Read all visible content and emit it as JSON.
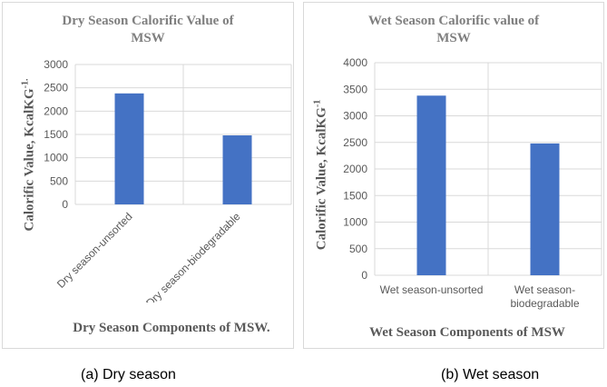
{
  "chart_data": [
    {
      "type": "bar",
      "title": "Dry Season Calorific Value of MSW",
      "title_lines": [
        "Dry Season Calorific Value of",
        "MSW"
      ],
      "xlabel": "Dry Season Components of MSW.",
      "ylabel": "Calorific Value, KcalKG",
      "ylabel_sup": "-1.",
      "categories": [
        "Dry season-unsorted",
        "Dry season-biodegradable"
      ],
      "values": [
        2380,
        1480
      ],
      "ylim": [
        0,
        3000
      ],
      "yticks": [
        0,
        500,
        1000,
        1500,
        2000,
        2500,
        3000
      ],
      "ytick_labels": [
        "0",
        "500",
        "1000",
        "1500",
        "2000",
        "2500",
        "3000"
      ],
      "bar_color": "#4472c4",
      "grid": true,
      "caption": "(a) Dry season"
    },
    {
      "type": "bar",
      "title": "Wet Season Calorific value of MSW",
      "title_lines": [
        "Wet Season Calorific value of",
        "MSW"
      ],
      "xlabel": "Wet Season Components of MSW",
      "ylabel": "Calorific Value, KcalKG",
      "ylabel_sup": "-1",
      "categories": [
        "Wet season-unsorted",
        "Wet season-biodegradable"
      ],
      "category_lines": [
        [
          "Wet season-unsorted"
        ],
        [
          "Wet season-",
          "biodegradable"
        ]
      ],
      "values": [
        3380,
        2480
      ],
      "ylim": [
        0,
        4000
      ],
      "yticks": [
        0,
        500,
        1000,
        1500,
        2000,
        2500,
        3000,
        3500,
        4000
      ],
      "ytick_labels": [
        "0",
        "500",
        "1000",
        "1500",
        "2000",
        "2500",
        "3000",
        "3500",
        "4000"
      ],
      "bar_color": "#4472c4",
      "grid": true,
      "caption": "(b) Wet season"
    }
  ]
}
